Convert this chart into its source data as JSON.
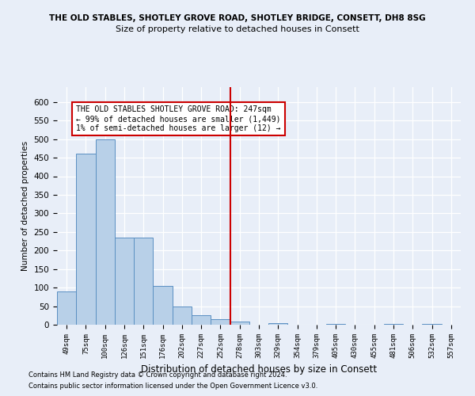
{
  "title_line1": "THE OLD STABLES, SHOTLEY GROVE ROAD, SHOTLEY BRIDGE, CONSETT, DH8 8SG",
  "title_line2": "Size of property relative to detached houses in Consett",
  "xlabel": "Distribution of detached houses by size in Consett",
  "ylabel": "Number of detached properties",
  "bin_labels": [
    "49sqm",
    "75sqm",
    "100sqm",
    "126sqm",
    "151sqm",
    "176sqm",
    "202sqm",
    "227sqm",
    "252sqm",
    "278sqm",
    "303sqm",
    "329sqm",
    "354sqm",
    "379sqm",
    "405sqm",
    "430sqm",
    "455sqm",
    "481sqm",
    "506sqm",
    "532sqm",
    "557sqm"
  ],
  "bar_values": [
    90,
    460,
    500,
    235,
    235,
    105,
    50,
    25,
    15,
    8,
    0,
    5,
    0,
    0,
    3,
    0,
    0,
    2,
    0,
    2,
    0
  ],
  "bar_color": "#b8d0e8",
  "bar_edge_color": "#5a8fc2",
  "property_line_x": 8.5,
  "annotation_text": "THE OLD STABLES SHOTLEY GROVE ROAD: 247sqm\n← 99% of detached houses are smaller (1,449)\n1% of semi-detached houses are larger (12) →",
  "annotation_box_color": "#ffffff",
  "annotation_border_color": "#cc0000",
  "vline_color": "#cc0000",
  "ylim": [
    0,
    640
  ],
  "yticks": [
    0,
    50,
    100,
    150,
    200,
    250,
    300,
    350,
    400,
    450,
    500,
    550,
    600
  ],
  "background_color": "#e8eef8",
  "grid_color": "#ffffff",
  "footer_line1": "Contains HM Land Registry data © Crown copyright and database right 2024.",
  "footer_line2": "Contains public sector information licensed under the Open Government Licence v3.0."
}
